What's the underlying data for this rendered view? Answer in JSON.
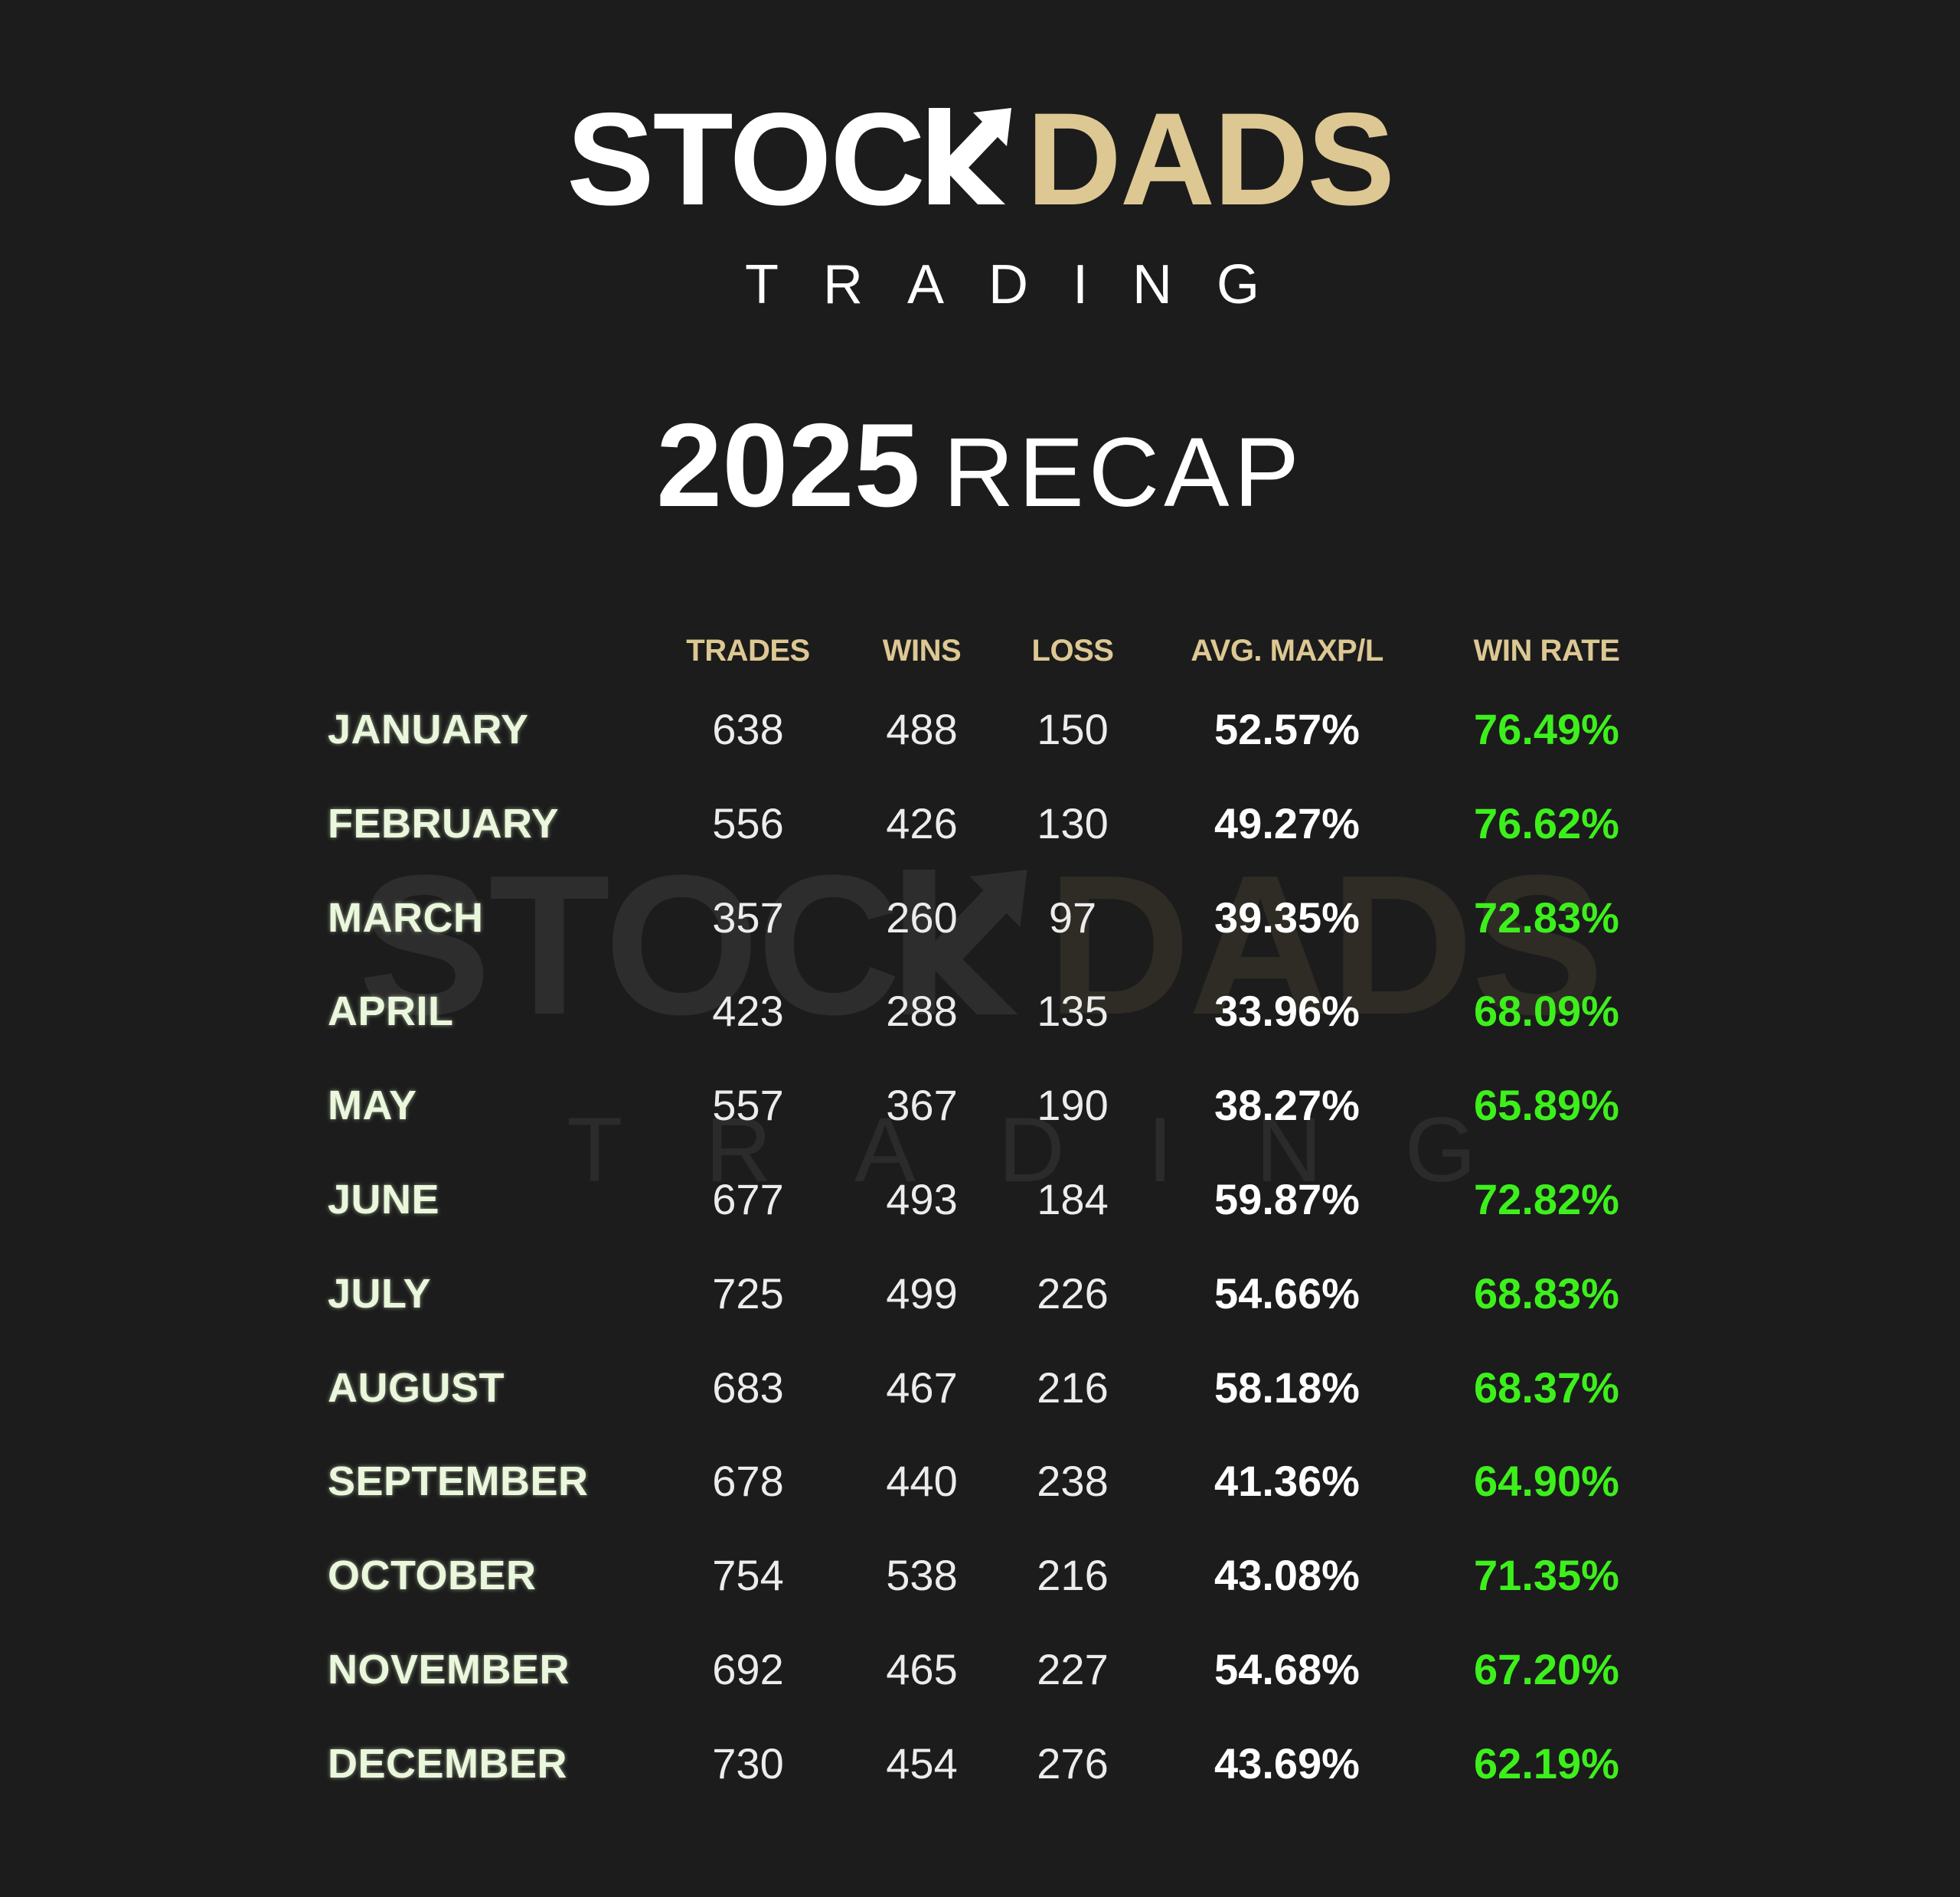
{
  "brand": {
    "name_part1": "STOC",
    "name_part2": "DADS",
    "subtitle": "TRADING",
    "colors": {
      "white": "#ffffff",
      "gold": "#ddc893",
      "green": "#3df01c",
      "background": "#1c1c1c"
    }
  },
  "heading": {
    "year": "2025",
    "word": "RECAP"
  },
  "watermark": {
    "name_part1": "STOC",
    "name_part2": "DADS",
    "subtitle": "TRADING"
  },
  "chart_data": {
    "type": "table",
    "columns": [
      "TRADES",
      "WINS",
      "LOSS",
      "AVG. MAXP/L",
      "WIN RATE"
    ],
    "rows": [
      {
        "month": "JANUARY",
        "trades": "638",
        "wins": "488",
        "loss": "150",
        "avg": "52.57%",
        "win_rate": "76.49%"
      },
      {
        "month": "FEBRUARY",
        "trades": "556",
        "wins": "426",
        "loss": "130",
        "avg": "49.27%",
        "win_rate": "76.62%"
      },
      {
        "month": "MARCH",
        "trades": "357",
        "wins": "260",
        "loss": "97",
        "avg": "39.35%",
        "win_rate": "72.83%"
      },
      {
        "month": "APRIL",
        "trades": "423",
        "wins": "288",
        "loss": "135",
        "avg": "33.96%",
        "win_rate": "68.09%"
      },
      {
        "month": "MAY",
        "trades": "557",
        "wins": "367",
        "loss": "190",
        "avg": "38.27%",
        "win_rate": "65.89%"
      },
      {
        "month": "JUNE",
        "trades": "677",
        "wins": "493",
        "loss": "184",
        "avg": "59.87%",
        "win_rate": "72.82%"
      },
      {
        "month": "JULY",
        "trades": "725",
        "wins": "499",
        "loss": "226",
        "avg": "54.66%",
        "win_rate": "68.83%"
      },
      {
        "month": "AUGUST",
        "trades": "683",
        "wins": "467",
        "loss": "216",
        "avg": "58.18%",
        "win_rate": "68.37%"
      },
      {
        "month": "SEPTEMBER",
        "trades": "678",
        "wins": "440",
        "loss": "238",
        "avg": "41.36%",
        "win_rate": "64.90%"
      },
      {
        "month": "OCTOBER",
        "trades": "754",
        "wins": "538",
        "loss": "216",
        "avg": "43.08%",
        "win_rate": "71.35%"
      },
      {
        "month": "NOVEMBER",
        "trades": "692",
        "wins": "465",
        "loss": "227",
        "avg": "54.68%",
        "win_rate": "67.20%"
      },
      {
        "month": "DECEMBER",
        "trades": "730",
        "wins": "454",
        "loss": "276",
        "avg": "43.69%",
        "win_rate": "62.19%"
      }
    ]
  }
}
